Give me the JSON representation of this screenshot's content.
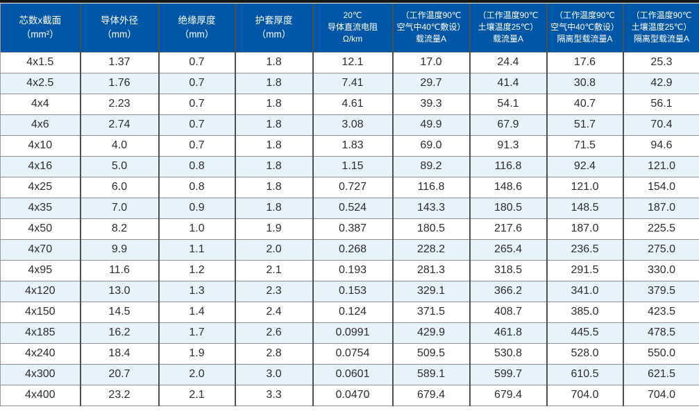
{
  "colors": {
    "header_bg": "#0057a8",
    "header_text": "#ffffff",
    "row_alt_bg": "#e7f3fb",
    "row_bg": "#ffffff",
    "divider_dark": "#4f4f4f",
    "divider_light": "#8e8e8e",
    "top_bar": "#151515",
    "body_text": "#2d2d2d"
  },
  "table": {
    "columns": [
      {
        "id": "spec",
        "lines": [
          "芯数x截面",
          "（mm²）"
        ]
      },
      {
        "id": "conductor-od",
        "lines": [
          "导体外径",
          "（mm）"
        ]
      },
      {
        "id": "insulation-thickness",
        "lines": [
          "绝缘厚度",
          "（mm）"
        ]
      },
      {
        "id": "sheath-thickness",
        "lines": [
          "护套厚度",
          "（mm）"
        ]
      },
      {
        "id": "dc-resistance",
        "lines": [
          "20℃",
          "导体直流电阻",
          "Ω/km"
        ]
      },
      {
        "id": "ampacity-air",
        "lines": [
          "（工作温度90℃",
          "空气中40℃敷设）",
          "载流量A"
        ]
      },
      {
        "id": "ampacity-soil",
        "lines": [
          "（工作温度90℃",
          "土壤温度25℃）",
          "载流量A"
        ]
      },
      {
        "id": "isolated-ampacity-air",
        "lines": [
          "（工作温度90℃",
          "空气中40℃敷设）",
          "隔离型载流量A"
        ]
      },
      {
        "id": "isolated-ampacity-soil",
        "lines": [
          "（工作温度90℃",
          "土壤温度25℃）",
          "隔离型载流量A"
        ]
      }
    ],
    "rows": [
      [
        "4x1.5",
        "1.37",
        "0.7",
        "1.8",
        "12.1",
        "17.0",
        "24.4",
        "17.6",
        "25.3"
      ],
      [
        "4x2.5",
        "1.76",
        "0.7",
        "1.8",
        "7.41",
        "29.7",
        "41.4",
        "30.8",
        "42.9"
      ],
      [
        "4x4",
        "2.23",
        "0.7",
        "1.8",
        "4.61",
        "39.3",
        "54.1",
        "40.7",
        "56.1"
      ],
      [
        "4x6",
        "2.74",
        "0.7",
        "1.8",
        "3.08",
        "49.9",
        "67.9",
        "51.7",
        "70.4"
      ],
      [
        "4x10",
        "4.0",
        "0.7",
        "1.8",
        "1.83",
        "69.0",
        "91.3",
        "71.5",
        "94.6"
      ],
      [
        "4x16",
        "5.0",
        "0.8",
        "1.8",
        "1.15",
        "89.2",
        "116.8",
        "92.4",
        "121.0"
      ],
      [
        "4x25",
        "6.0",
        "0.8",
        "1.8",
        "0.727",
        "116.8",
        "148.6",
        "121.0",
        "154.0"
      ],
      [
        "4x35",
        "7.0",
        "0.9",
        "1.8",
        "0.524",
        "143.3",
        "180.5",
        "148.5",
        "187.0"
      ],
      [
        "4x50",
        "8.2",
        "1.0",
        "1.9",
        "0.387",
        "180.5",
        "217.6",
        "187.0",
        "225.5"
      ],
      [
        "4x70",
        "9.9",
        "1.1",
        "2.0",
        "0.268",
        "228.2",
        "265.4",
        "236.5",
        "275.0"
      ],
      [
        "4x95",
        "11.6",
        "1.2",
        "2.1",
        "0.193",
        "281.3",
        "318.5",
        "291.5",
        "330.0"
      ],
      [
        "4x120",
        "13.0",
        "1.3",
        "2.3",
        "0.153",
        "329.1",
        "366.2",
        "341.0",
        "379.5"
      ],
      [
        "4x150",
        "14.5",
        "1.4",
        "2.4",
        "0.124",
        "371.5",
        "408.7",
        "385.0",
        "423.5"
      ],
      [
        "4x185",
        "16.2",
        "1.7",
        "2.6",
        "0.0991",
        "429.9",
        "461.8",
        "445.5",
        "478.5"
      ],
      [
        "4x240",
        "18.4",
        "1.9",
        "2.8",
        "0.0754",
        "509.5",
        "530.8",
        "528.0",
        "550.0"
      ],
      [
        "4x300",
        "20.7",
        "2.0",
        "3.0",
        "0.0601",
        "589.1",
        "599.7",
        "610.5",
        "621.5"
      ],
      [
        "4x400",
        "23.2",
        "2.1",
        "3.3",
        "0.0470",
        "679.4",
        "679.4",
        "704.0",
        "704.0"
      ]
    ]
  }
}
